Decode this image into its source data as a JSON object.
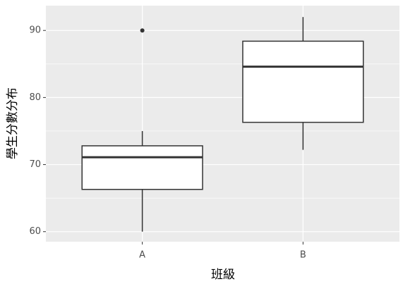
{
  "chart_data": {
    "type": "box",
    "categories": [
      "A",
      "B"
    ],
    "boxes": [
      {
        "min": 60,
        "q1": 66.3,
        "median": 71.1,
        "q3": 72.8,
        "max": 75,
        "outliers": [
          90
        ]
      },
      {
        "min": 72.2,
        "q1": 76.3,
        "median": 84.6,
        "q3": 88.4,
        "max": 92,
        "outliers": []
      }
    ],
    "fill": "#ffffff",
    "color": "#333333",
    "panel_color": "#ebebeb",
    "ylim": [
      58.5,
      93.7
    ],
    "yticks": [
      60,
      70,
      80,
      90
    ],
    "grid": true,
    "xlabel": "班級",
    "ylabel": "學生分數分布"
  }
}
